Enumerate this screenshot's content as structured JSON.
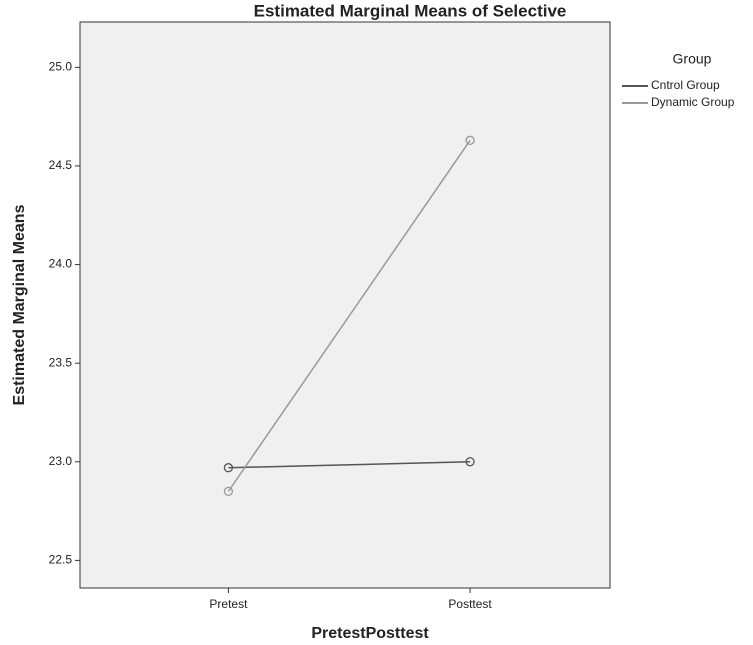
{
  "chart_data": {
    "type": "line",
    "title": "Estimated Marginal Means of Selective",
    "x_label": "PretestPosttest",
    "y_label": "Estimated Marginal Means",
    "legend_title": "Group",
    "legend_position": "right",
    "categories": [
      "Pretest",
      "Posttest"
    ],
    "series": [
      {
        "name": "Cntrol Group",
        "color": "#555555",
        "values": [
          22.97,
          23.0
        ]
      },
      {
        "name": "Dynamic Group",
        "color": "#999999",
        "values": [
          22.85,
          24.63
        ]
      }
    ],
    "ylim": [
      22.36,
      25.23
    ],
    "yticks": [
      {
        "value": 22.5,
        "label": "22.5"
      },
      {
        "value": 23,
        "label": "23.0"
      },
      {
        "value": 23.5,
        "label": "23.5"
      },
      {
        "value": 24,
        "label": "24.0"
      },
      {
        "value": 24.5,
        "label": "24.5"
      },
      {
        "value": 25,
        "label": "25.0"
      }
    ]
  }
}
